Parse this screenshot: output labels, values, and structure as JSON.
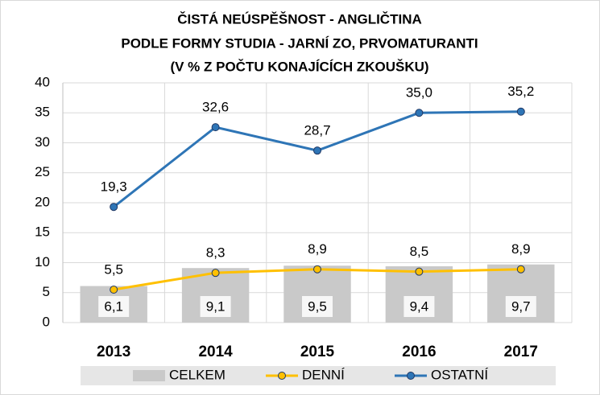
{
  "chart_data": {
    "type": "bar-line",
    "title": [
      "ČISTÁ NEÚSPĚŠNOST - ANGLIČTINA",
      "PODLE FORMY STUDIA - JARNÍ ZO, PRVOMATURANTI",
      "(V % Z POČTU KONAJÍCÍCH ZKOUŠKU)"
    ],
    "categories": [
      "2013",
      "2014",
      "2015",
      "2016",
      "2017"
    ],
    "series": [
      {
        "name": "CELKEM",
        "type": "bar",
        "color": "#c9c9c9",
        "values": [
          6.1,
          9.1,
          9.5,
          9.4,
          9.7
        ],
        "value_labels": [
          "6,1",
          "9,1",
          "9,5",
          "9,4",
          "9,7"
        ]
      },
      {
        "name": "DENNÍ",
        "type": "line",
        "color": "#ffc000",
        "values": [
          5.5,
          8.3,
          8.9,
          8.5,
          8.9
        ],
        "value_labels": [
          "5,5",
          "8,3",
          "8,9",
          "8,5",
          "8,9"
        ]
      },
      {
        "name": "OSTATNÍ",
        "type": "line",
        "color": "#2e75b6",
        "values": [
          19.3,
          32.6,
          28.7,
          35.0,
          35.2
        ],
        "value_labels": [
          "19,3",
          "32,6",
          "28,7",
          "35,0",
          "35,2"
        ]
      }
    ],
    "ylim": [
      0,
      40
    ],
    "yticks": [
      0,
      5,
      10,
      15,
      20,
      25,
      30,
      35,
      40
    ],
    "grid": true
  }
}
